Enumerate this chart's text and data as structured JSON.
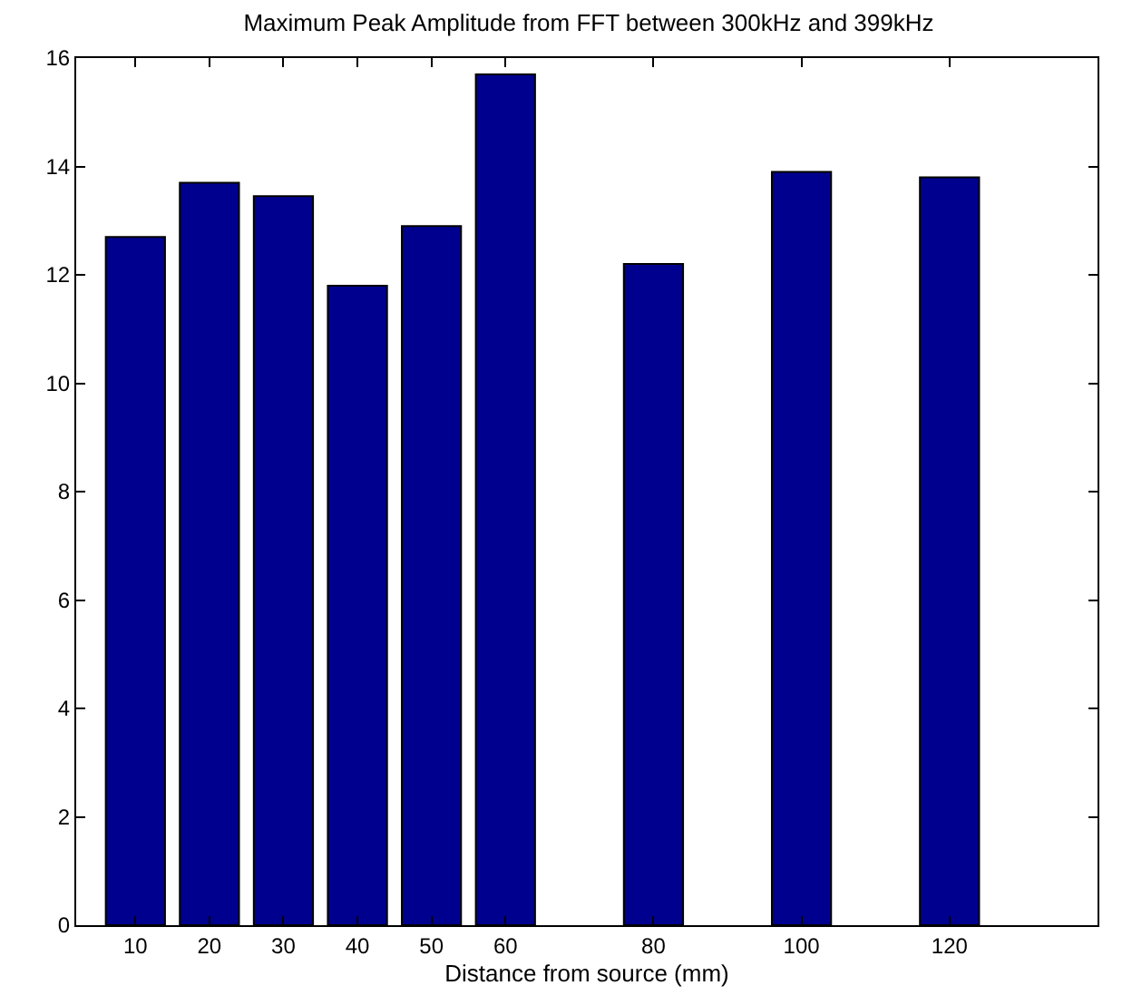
{
  "chart_data": {
    "type": "bar",
    "title": "Maximum Peak Amplitude from FFT between 300kHz and 399kHz",
    "xlabel": "Distance from source (mm)",
    "x": [
      10,
      20,
      30,
      40,
      50,
      60,
      80,
      100,
      120
    ],
    "values": [
      12.7,
      13.7,
      13.45,
      11.8,
      12.9,
      15.7,
      12.2,
      13.9,
      13.8
    ],
    "color": "#00008f",
    "xlim": [
      2,
      140
    ],
    "xticks": [
      10,
      20,
      30,
      40,
      50,
      60,
      80,
      100,
      120
    ],
    "ylim": [
      0,
      16
    ],
    "yticks": [
      0,
      2,
      4,
      6,
      8,
      10,
      12,
      14,
      16
    ]
  }
}
